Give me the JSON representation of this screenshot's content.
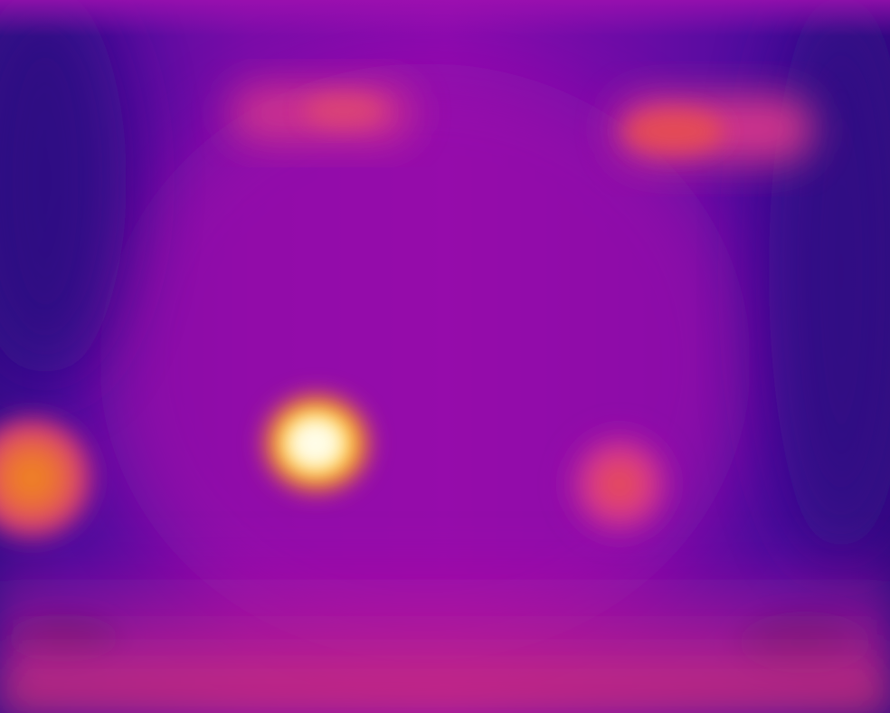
{
  "image": {
    "kind": "thermal-camera-frame",
    "palette": "ironbow",
    "palette_colors": {
      "coldest": "#2a0a7a",
      "cool": "#5a0ca0",
      "mid": "#a010a8",
      "warm": "#e0408a",
      "hot": "#f08030",
      "hottest": "#fffde0"
    },
    "hotspots": [
      {
        "name": "ceiling-light-left",
        "intensity": "warm"
      },
      {
        "name": "ceiling-light-right",
        "intensity": "warm"
      },
      {
        "name": "left-edge-source",
        "intensity": "hot"
      },
      {
        "name": "center-bright-source",
        "intensity": "hottest"
      },
      {
        "name": "right-source",
        "intensity": "warm"
      }
    ]
  }
}
